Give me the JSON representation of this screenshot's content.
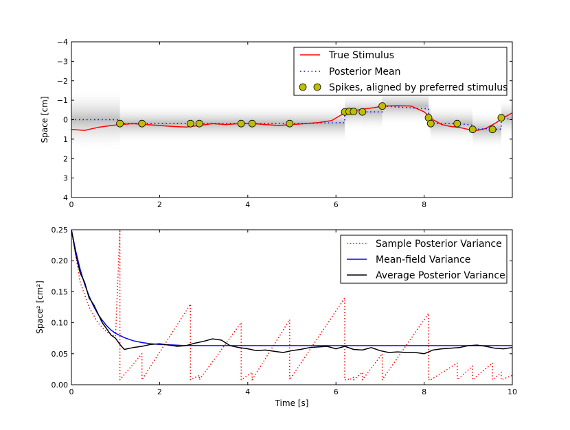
{
  "chart_data": [
    {
      "type": "line",
      "ylabel": "Space [cm]",
      "xlim": [
        0,
        10
      ],
      "ylim": [
        4,
        -4
      ],
      "xticks": [
        0,
        2,
        4,
        6,
        8
      ],
      "xtick_labels": [
        "0",
        "2",
        "4",
        "6",
        "8"
      ],
      "yticks": [
        -4,
        -3,
        -2,
        -1,
        0,
        1,
        2,
        3,
        4
      ],
      "ytick_labels": [
        "−4",
        "−3",
        "−2",
        "−1",
        "0",
        "1",
        "2",
        "3",
        "4"
      ],
      "legend": [
        "True Stimulus",
        "Posterior Mean",
        "Spikes, aligned by preferred stimulus"
      ],
      "legend_position": "top-right",
      "series": [
        {
          "name": "True Stimulus",
          "color": "#ff0000",
          "style": "solid",
          "x": [
            0,
            0.3,
            0.6,
            0.9,
            1.1,
            1.4,
            1.7,
            2.0,
            2.3,
            2.6,
            2.9,
            3.2,
            3.5,
            3.8,
            4.1,
            4.4,
            4.7,
            5.0,
            5.3,
            5.6,
            5.9,
            6.2,
            6.5,
            6.8,
            7.1,
            7.4,
            7.7,
            8.0,
            8.2,
            8.4,
            8.6,
            8.8,
            9.0,
            9.2,
            9.4,
            9.6,
            9.8,
            10.0
          ],
          "y": [
            0.5,
            0.55,
            0.4,
            0.3,
            0.25,
            0.2,
            0.25,
            0.3,
            0.35,
            0.38,
            0.3,
            0.2,
            0.25,
            0.2,
            0.2,
            0.25,
            0.3,
            0.25,
            0.2,
            0.15,
            0.05,
            -0.35,
            -0.5,
            -0.6,
            -0.7,
            -0.72,
            -0.7,
            -0.4,
            0.0,
            0.25,
            0.35,
            0.4,
            0.5,
            0.55,
            0.45,
            0.2,
            -0.1,
            -0.35
          ]
        },
        {
          "name": "Posterior Mean",
          "color": "#0000ff",
          "style": "dotted",
          "x": [
            0,
            1.1,
            1.1,
            1.6,
            1.6,
            2.7,
            2.7,
            2.9,
            2.9,
            3.85,
            3.85,
            4.1,
            4.1,
            4.95,
            4.95,
            6.2,
            6.2,
            6.3,
            6.3,
            6.4,
            6.4,
            6.6,
            6.6,
            7.05,
            7.05,
            8.1,
            8.1,
            8.15,
            8.15,
            8.75,
            8.75,
            9.1,
            9.1,
            9.55,
            9.55,
            9.75,
            9.75,
            10.0
          ],
          "y": [
            0,
            0,
            0.2,
            0.2,
            0.2,
            0.2,
            0.2,
            0.2,
            0.2,
            0.2,
            0.2,
            0.2,
            0.2,
            0.2,
            0.2,
            0.15,
            -0.4,
            -0.42,
            -0.42,
            -0.42,
            -0.42,
            -0.4,
            -0.4,
            -0.4,
            -0.7,
            -0.55,
            -0.1,
            -0.05,
            0.2,
            0.2,
            0.2,
            0.28,
            0.5,
            0.45,
            0.5,
            0.48,
            -0.1,
            0.0
          ]
        }
      ],
      "spikes": {
        "name": "Spikes, aligned by preferred stimulus",
        "color": "#bfbf00",
        "x": [
          1.1,
          1.6,
          2.7,
          2.9,
          3.85,
          4.1,
          4.95,
          6.2,
          6.3,
          6.4,
          6.6,
          7.05,
          8.1,
          8.15,
          8.75,
          9.1,
          9.55,
          9.75
        ],
        "y": [
          0.2,
          0.2,
          0.2,
          0.2,
          0.2,
          0.2,
          0.2,
          -0.4,
          -0.42,
          -0.42,
          -0.4,
          -0.7,
          -0.1,
          0.2,
          0.2,
          0.5,
          0.5,
          -0.1
        ]
      }
    },
    {
      "type": "line",
      "xlabel": "Time [s]",
      "ylabel": "Space² [cm²]",
      "xlim": [
        0,
        10
      ],
      "ylim": [
        0,
        0.25
      ],
      "xticks": [
        0,
        2,
        4,
        6,
        8,
        10
      ],
      "xtick_labels": [
        "0",
        "2",
        "4",
        "6",
        "8",
        "10"
      ],
      "yticks": [
        0,
        0.05,
        0.1,
        0.15,
        0.2,
        0.25
      ],
      "ytick_labels": [
        "0.00",
        "0.05",
        "0.10",
        "0.15",
        "0.20",
        "0.25"
      ],
      "legend": [
        "Sample Posterior Variance",
        "Mean-field Variance",
        "Average Posterior Variance"
      ],
      "legend_position": "top-right",
      "series": [
        {
          "name": "Sample Posterior Variance",
          "color": "#ff0000",
          "style": "dotted",
          "x": [
            0,
            0.2,
            0.4,
            0.6,
            0.8,
            1.0,
            1.1,
            1.1,
            1.6,
            1.6,
            2.7,
            2.7,
            2.9,
            2.9,
            3.85,
            3.85,
            4.1,
            4.1,
            4.95,
            4.95,
            6.2,
            6.2,
            6.3,
            6.3,
            6.4,
            6.4,
            6.6,
            6.6,
            7.05,
            7.05,
            8.1,
            8.1,
            8.15,
            8.15,
            8.75,
            8.75,
            9.1,
            9.1,
            9.55,
            9.55,
            9.75,
            9.75,
            10.0
          ],
          "y": [
            0.25,
            0.165,
            0.125,
            0.1,
            0.085,
            0.078,
            0.25,
            0.008,
            0.05,
            0.008,
            0.13,
            0.008,
            0.015,
            0.008,
            0.1,
            0.008,
            0.02,
            0.008,
            0.105,
            0.008,
            0.14,
            0.008,
            0.009,
            0.008,
            0.012,
            0.008,
            0.02,
            0.008,
            0.05,
            0.008,
            0.115,
            0.008,
            0.009,
            0.008,
            0.035,
            0.008,
            0.03,
            0.008,
            0.035,
            0.008,
            0.02,
            0.008,
            0.015
          ]
        },
        {
          "name": "Mean-field Variance",
          "color": "#0000ff",
          "style": "solid",
          "x": [
            0,
            0.1,
            0.2,
            0.3,
            0.4,
            0.5,
            0.6,
            0.7,
            0.8,
            0.9,
            1.0,
            1.2,
            1.4,
            1.6,
            1.8,
            2.0,
            2.5,
            3.0,
            4.0,
            5.0,
            6.0,
            7.0,
            8.0,
            9.0,
            10.0
          ],
          "y": [
            0.25,
            0.215,
            0.186,
            0.162,
            0.143,
            0.127,
            0.114,
            0.104,
            0.095,
            0.088,
            0.083,
            0.076,
            0.071,
            0.068,
            0.066,
            0.065,
            0.0635,
            0.063,
            0.063,
            0.063,
            0.063,
            0.063,
            0.063,
            0.063,
            0.063
          ]
        },
        {
          "name": "Average Posterior Variance",
          "color": "#000000",
          "style": "solid",
          "x": [
            0,
            0.1,
            0.2,
            0.3,
            0.4,
            0.5,
            0.6,
            0.7,
            0.8,
            0.9,
            1.0,
            1.1,
            1.2,
            1.4,
            1.6,
            1.8,
            2.0,
            2.2,
            2.4,
            2.6,
            2.8,
            3.0,
            3.2,
            3.4,
            3.6,
            3.8,
            4.0,
            4.2,
            4.4,
            4.6,
            4.8,
            5.0,
            5.2,
            5.4,
            5.6,
            5.8,
            6.0,
            6.2,
            6.4,
            6.6,
            6.8,
            7.0,
            7.2,
            7.4,
            7.6,
            7.8,
            8.0,
            8.2,
            8.4,
            8.6,
            8.8,
            9.0,
            9.2,
            9.4,
            9.6,
            9.8,
            10.0
          ],
          "y": [
            0.25,
            0.21,
            0.18,
            0.165,
            0.14,
            0.13,
            0.115,
            0.1,
            0.09,
            0.08,
            0.075,
            0.065,
            0.057,
            0.06,
            0.062,
            0.065,
            0.066,
            0.064,
            0.062,
            0.063,
            0.067,
            0.07,
            0.074,
            0.072,
            0.063,
            0.06,
            0.058,
            0.055,
            0.056,
            0.054,
            0.052,
            0.055,
            0.057,
            0.06,
            0.061,
            0.062,
            0.058,
            0.062,
            0.057,
            0.056,
            0.06,
            0.055,
            0.052,
            0.053,
            0.052,
            0.052,
            0.05,
            0.056,
            0.058,
            0.059,
            0.06,
            0.063,
            0.064,
            0.062,
            0.059,
            0.058,
            0.06
          ]
        }
      ]
    }
  ]
}
